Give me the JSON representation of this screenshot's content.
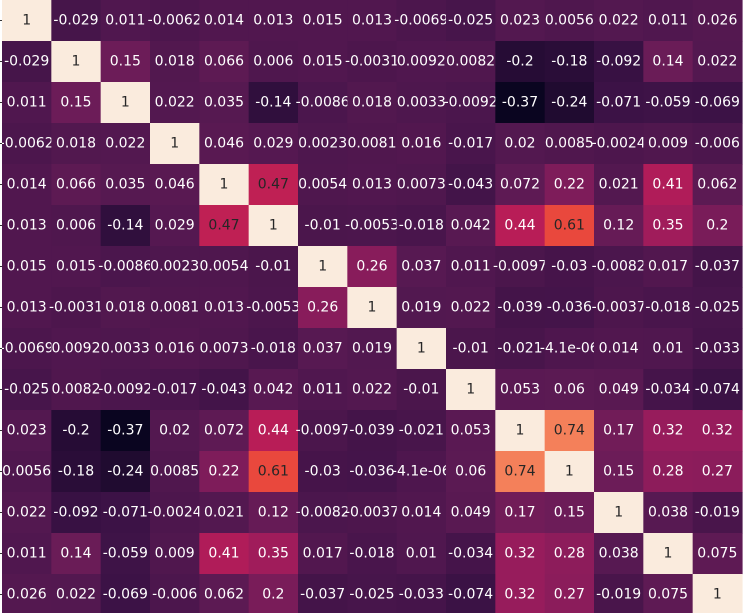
{
  "chart_data": {
    "type": "heatmap",
    "title": "",
    "xlabel": "",
    "ylabel": "",
    "colormap": "rocket",
    "vmin": -0.37,
    "vmax": 1,
    "values": [
      [
        1,
        -0.029,
        0.011,
        -0.0062,
        0.014,
        0.013,
        0.015,
        0.013,
        -0.0069,
        -0.025,
        0.023,
        0.0056,
        0.022,
        0.011,
        0.026
      ],
      [
        -0.029,
        1,
        0.15,
        0.018,
        0.066,
        0.006,
        0.015,
        -0.0031,
        0.0092,
        0.0082,
        -0.2,
        -0.18,
        -0.092,
        0.14,
        0.022
      ],
      [
        0.011,
        0.15,
        1,
        0.022,
        0.035,
        -0.14,
        -0.0086,
        0.018,
        0.0033,
        -0.0092,
        -0.37,
        -0.24,
        -0.071,
        -0.059,
        -0.069
      ],
      [
        -0.0062,
        0.018,
        0.022,
        1,
        0.046,
        0.029,
        0.0023,
        0.0081,
        0.016,
        -0.017,
        0.02,
        0.0085,
        -0.0024,
        0.009,
        -0.006
      ],
      [
        0.014,
        0.066,
        0.035,
        0.046,
        1,
        0.47,
        0.0054,
        0.013,
        0.0073,
        -0.043,
        0.072,
        0.22,
        0.021,
        0.41,
        0.062
      ],
      [
        0.013,
        0.006,
        -0.14,
        0.029,
        0.47,
        1,
        -0.01,
        -0.0053,
        -0.018,
        0.042,
        0.44,
        0.61,
        0.12,
        0.35,
        0.2
      ],
      [
        0.015,
        0.015,
        -0.0086,
        0.0023,
        0.0054,
        -0.01,
        1,
        0.26,
        0.037,
        0.011,
        -0.0097,
        -0.03,
        -0.0082,
        0.017,
        -0.037
      ],
      [
        0.013,
        -0.0031,
        0.018,
        0.0081,
        0.013,
        -0.0053,
        0.26,
        1,
        0.019,
        0.022,
        -0.039,
        -0.036,
        -0.0037,
        -0.018,
        -0.025
      ],
      [
        -0.0069,
        0.0092,
        0.0033,
        0.016,
        0.0073,
        -0.018,
        0.037,
        0.019,
        1,
        -0.01,
        -0.021,
        -4.1e-06,
        0.014,
        0.01,
        -0.033
      ],
      [
        -0.025,
        0.0082,
        -0.0092,
        -0.017,
        -0.043,
        0.042,
        0.011,
        0.022,
        -0.01,
        1,
        0.053,
        0.06,
        0.049,
        -0.034,
        -0.074
      ],
      [
        0.023,
        -0.2,
        -0.37,
        0.02,
        0.072,
        0.44,
        -0.0097,
        -0.039,
        -0.021,
        0.053,
        1,
        0.74,
        0.17,
        0.32,
        0.32
      ],
      [
        0.0056,
        -0.18,
        -0.24,
        0.0085,
        0.22,
        0.61,
        -0.03,
        -0.036,
        -4.1e-06,
        0.06,
        0.74,
        1,
        0.15,
        0.28,
        0.27
      ],
      [
        0.022,
        -0.092,
        -0.071,
        -0.0024,
        0.021,
        0.12,
        -0.0082,
        -0.0037,
        0.014,
        0.049,
        0.17,
        0.15,
        1,
        0.038,
        -0.019
      ],
      [
        0.011,
        0.14,
        -0.059,
        0.009,
        0.41,
        0.35,
        0.017,
        -0.018,
        0.01,
        -0.034,
        0.32,
        0.28,
        0.038,
        1,
        0.075
      ],
      [
        0.026,
        0.022,
        -0.069,
        -0.006,
        0.062,
        0.2,
        -0.037,
        -0.025,
        -0.033,
        -0.074,
        0.32,
        0.27,
        -0.019,
        0.075,
        1
      ]
    ],
    "labels": [
      [
        "1",
        "-0.029",
        "0.011",
        "-0.0062",
        "0.014",
        "0.013",
        "0.015",
        "0.013",
        "-0.0069",
        "-0.025",
        "0.023",
        "0.0056",
        "0.022",
        "0.011",
        "0.026"
      ],
      [
        "-0.029",
        "1",
        "0.15",
        "0.018",
        "0.066",
        "0.006",
        "0.015",
        "-0.0031",
        "0.0092",
        "0.0082",
        "-0.2",
        "-0.18",
        "-0.092",
        "0.14",
        "0.022"
      ],
      [
        "0.011",
        "0.15",
        "1",
        "0.022",
        "0.035",
        "-0.14",
        "-0.0086",
        "0.018",
        "0.0033",
        "-0.0092",
        "-0.37",
        "-0.24",
        "-0.071",
        "-0.059",
        "-0.069"
      ],
      [
        "-0.0062",
        "0.018",
        "0.022",
        "1",
        "0.046",
        "0.029",
        "0.0023",
        "0.0081",
        "0.016",
        "-0.017",
        "0.02",
        "0.0085",
        "-0.0024",
        "0.009",
        "-0.006"
      ],
      [
        "0.014",
        "0.066",
        "0.035",
        "0.046",
        "1",
        "0.47",
        "0.0054",
        "0.013",
        "0.0073",
        "-0.043",
        "0.072",
        "0.22",
        "0.021",
        "0.41",
        "0.062"
      ],
      [
        "0.013",
        "0.006",
        "-0.14",
        "0.029",
        "0.47",
        "1",
        "-0.01",
        "-0.0053",
        "-0.018",
        "0.042",
        "0.44",
        "0.61",
        "0.12",
        "0.35",
        "0.2"
      ],
      [
        "0.015",
        "0.015",
        "-0.0086",
        "0.0023",
        "0.0054",
        "-0.01",
        "1",
        "0.26",
        "0.037",
        "0.011",
        "-0.0097",
        "-0.03",
        "-0.0082",
        "0.017",
        "-0.037"
      ],
      [
        "0.013",
        "-0.0031",
        "0.018",
        "0.0081",
        "0.013",
        "-0.0053",
        "0.26",
        "1",
        "0.019",
        "0.022",
        "-0.039",
        "-0.036",
        "-0.0037",
        "-0.018",
        "-0.025"
      ],
      [
        "-0.0069",
        "0.0092",
        "0.0033",
        "0.016",
        "0.0073",
        "-0.018",
        "0.037",
        "0.019",
        "1",
        "-0.01",
        "-0.021",
        "-4.1e-06",
        "0.014",
        "0.01",
        "-0.033"
      ],
      [
        "-0.025",
        "0.0082",
        "-0.0092",
        "-0.017",
        "-0.043",
        "0.042",
        "0.011",
        "0.022",
        "-0.01",
        "1",
        "0.053",
        "0.06",
        "0.049",
        "-0.034",
        "-0.074"
      ],
      [
        "0.023",
        "-0.2",
        "-0.37",
        "0.02",
        "0.072",
        "0.44",
        "-0.0097",
        "-0.039",
        "-0.021",
        "0.053",
        "1",
        "0.74",
        "0.17",
        "0.32",
        "0.32"
      ],
      [
        "0.0056",
        "-0.18",
        "-0.24",
        "0.0085",
        "0.22",
        "0.61",
        "-0.03",
        "-0.036",
        "-4.1e-06",
        "0.06",
        "0.74",
        "1",
        "0.15",
        "0.28",
        "0.27"
      ],
      [
        "0.022",
        "-0.092",
        "-0.071",
        "-0.0024",
        "0.021",
        "0.12",
        "-0.0082",
        "-0.0037",
        "0.014",
        "0.049",
        "0.17",
        "0.15",
        "1",
        "0.038",
        "-0.019"
      ],
      [
        "0.011",
        "0.14",
        "-0.059",
        "0.009",
        "0.41",
        "0.35",
        "0.017",
        "-0.018",
        "0.01",
        "-0.034",
        "0.32",
        "0.28",
        "0.038",
        "1",
        "0.075"
      ],
      [
        "0.026",
        "0.022",
        "-0.069",
        "-0.006",
        "0.062",
        "0.2",
        "-0.037",
        "-0.025",
        "-0.033",
        "-0.074",
        "0.32",
        "0.27",
        "-0.019",
        "0.075",
        "1"
      ]
    ]
  }
}
